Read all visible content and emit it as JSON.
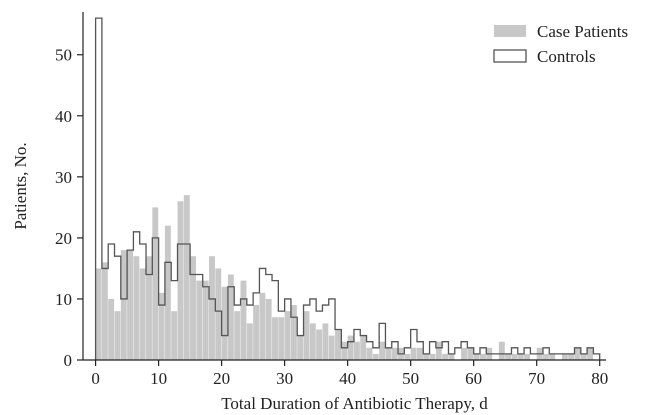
{
  "chart_data": {
    "type": "bar",
    "xlabel": "Total Duration of Antibiotic Therapy, d",
    "ylabel": "Patients, No.",
    "xlim": [
      -2,
      81
    ],
    "ylim": [
      0,
      57
    ],
    "x_ticks": [
      0,
      10,
      20,
      30,
      40,
      50,
      60,
      70,
      80
    ],
    "y_ticks": [
      0,
      10,
      20,
      30,
      40,
      50
    ],
    "x_tick_labels": [
      "0",
      "10",
      "20",
      "30",
      "40",
      "50",
      "60",
      "70",
      "80"
    ],
    "y_tick_labels": [
      "0",
      "10",
      "20",
      "30",
      "40",
      "50"
    ],
    "bin_width": 1,
    "legend": {
      "placement": "top-right"
    },
    "grid": false,
    "colors": {
      "case_fill": "#c8c8c8",
      "control_edge": "#555555",
      "axis": "#222222"
    },
    "series": [
      {
        "name": "Case Patients",
        "style": "filled bars",
        "x": [
          0,
          1,
          2,
          3,
          4,
          5,
          6,
          7,
          8,
          9,
          10,
          11,
          12,
          13,
          14,
          15,
          16,
          17,
          18,
          19,
          20,
          21,
          22,
          23,
          24,
          25,
          26,
          27,
          28,
          29,
          30,
          31,
          32,
          33,
          34,
          35,
          36,
          37,
          38,
          39,
          40,
          41,
          42,
          43,
          44,
          45,
          46,
          47,
          48,
          49,
          50,
          51,
          52,
          53,
          54,
          55,
          56,
          57,
          58,
          59,
          60,
          61,
          62,
          63,
          64,
          65,
          66,
          67,
          68,
          69,
          70,
          71,
          72,
          73,
          74,
          75,
          76,
          77,
          78,
          79
        ],
        "values": [
          15,
          16,
          10,
          8,
          18,
          18,
          17,
          15,
          17,
          25,
          11,
          22,
          8,
          26,
          27,
          17,
          13,
          13,
          17,
          15,
          12,
          14,
          8,
          13,
          6,
          9,
          11,
          10,
          7,
          7,
          8,
          9,
          4,
          8,
          6,
          5,
          6,
          4,
          5,
          3,
          4,
          3,
          4,
          2,
          1,
          3,
          2,
          2,
          2,
          1,
          2,
          2,
          1,
          1,
          3,
          1,
          1,
          0,
          2,
          2,
          1,
          1,
          2,
          0,
          3,
          1,
          1,
          1,
          1,
          0,
          2,
          1,
          1,
          0,
          1,
          1,
          2,
          1,
          2,
          0
        ]
      },
      {
        "name": "Controls",
        "style": "outlined steps",
        "x": [
          0,
          1,
          2,
          3,
          4,
          5,
          6,
          7,
          8,
          9,
          10,
          11,
          12,
          13,
          14,
          15,
          16,
          17,
          18,
          19,
          20,
          21,
          22,
          23,
          24,
          25,
          26,
          27,
          28,
          29,
          30,
          31,
          32,
          33,
          34,
          35,
          36,
          37,
          38,
          39,
          40,
          41,
          42,
          43,
          44,
          45,
          46,
          47,
          48,
          49,
          50,
          51,
          52,
          53,
          54,
          55,
          56,
          57,
          58,
          59,
          60,
          61,
          62,
          63,
          64,
          65,
          66,
          67,
          68,
          69,
          70,
          71,
          72,
          73,
          74,
          75,
          76,
          77,
          78,
          79
        ],
        "values": [
          56,
          15,
          19,
          17,
          10,
          18,
          21,
          19,
          14,
          20,
          9,
          16,
          13,
          19,
          19,
          14,
          14,
          12,
          10,
          8,
          4,
          12,
          9,
          10,
          9,
          11,
          15,
          14,
          13,
          8,
          10,
          7,
          4,
          9,
          10,
          8,
          9,
          10,
          5,
          2,
          3,
          5,
          4,
          3,
          2,
          6,
          2,
          3,
          1,
          2,
          5,
          3,
          1,
          3,
          2,
          3,
          1,
          2,
          3,
          2,
          1,
          2,
          1,
          1,
          1,
          1,
          2,
          1,
          2,
          1,
          1,
          2,
          1,
          1,
          1,
          1,
          2,
          1,
          2,
          1
        ]
      }
    ]
  }
}
